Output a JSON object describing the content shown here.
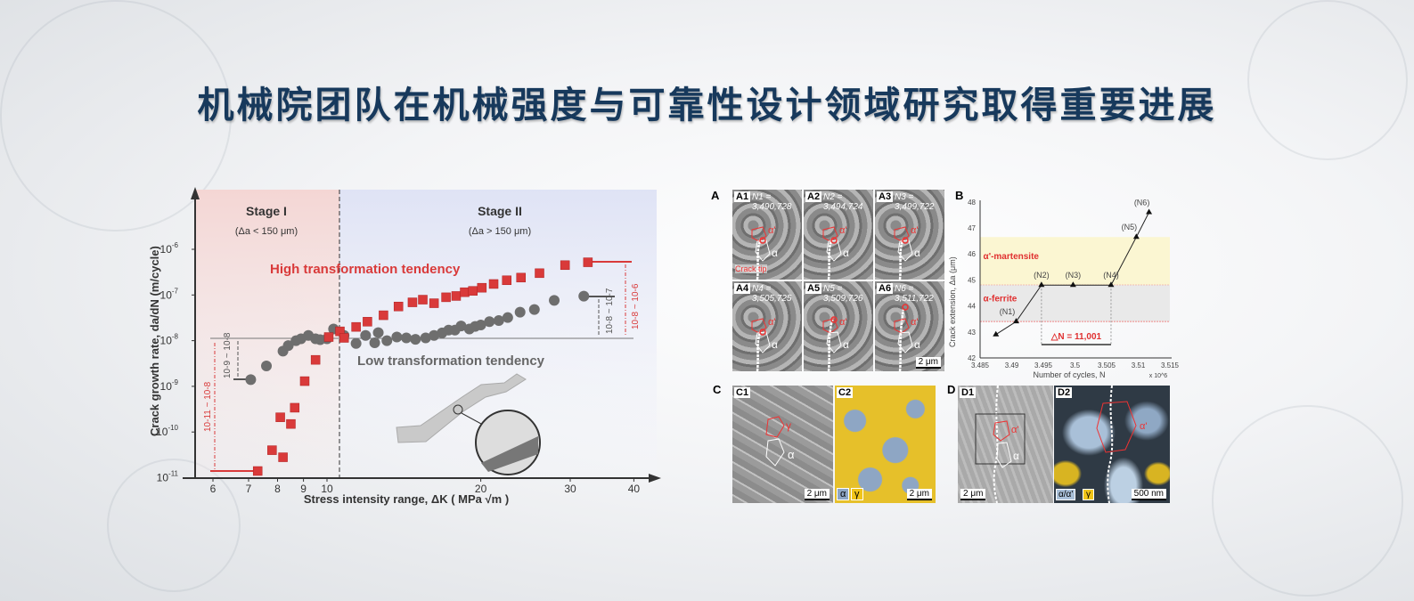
{
  "title": "机械院团队在机械强度与可靠性设计领域研究取得重要进展",
  "chart_data": [
    {
      "type": "scatter",
      "xlabel": "Stress intensity range, ΔK ( MPa √m )",
      "ylabel": "Crack growth rate, da/dN (m/cycle)",
      "x_scale": "log",
      "y_scale": "log",
      "xlim": [
        5.8,
        40
      ],
      "ylim": [
        1e-11,
        1e-06
      ],
      "x_ticks": [
        "6",
        "7",
        "8",
        "9",
        "10",
        "20",
        "30",
        "40"
      ],
      "y_ticks": [
        "10-11",
        "10-10",
        "10-9",
        "10-8",
        "10-7",
        "10-6"
      ],
      "regions": [
        {
          "label": "Stage I",
          "sub": "(Δa < 150 μm)"
        },
        {
          "label": "Stage II",
          "sub": "(Δa > 150 μm)"
        }
      ],
      "series": [
        {
          "name": "High transformation tendency",
          "color": "#d93a3a",
          "marker": "square",
          "x": [
            7.3,
            7.8,
            8.2,
            8.1,
            8.5,
            8.65,
            9.05,
            9.5,
            10.08,
            10.6,
            10.8,
            11.4,
            12.0,
            12.9,
            13.8,
            14.7,
            15.4,
            16.2,
            17.1,
            17.9,
            18.6,
            19.3,
            20.1,
            21.2,
            22.5,
            24.0,
            26.1,
            29.3,
            32.5
          ],
          "y": [
            1.4e-11,
            4e-11,
            2.8e-11,
            2.1e-10,
            1.5e-10,
            3.4e-10,
            1.3e-09,
            3.8e-09,
            1.2e-08,
            1.6e-08,
            1.15e-08,
            2e-08,
            2.6e-08,
            3.6e-08,
            5.6e-08,
            6.9e-08,
            7.9e-08,
            6.6e-08,
            8.9e-08,
            9.5e-08,
            1.15e-07,
            1.23e-07,
            1.44e-07,
            1.74e-07,
            2.1e-07,
            2.4e-07,
            3e-07,
            4.5e-07,
            5.2e-07
          ]
        },
        {
          "name": "Low transformation tendency",
          "color": "#6e6e6e",
          "marker": "circle",
          "x": [
            7.07,
            7.6,
            8.2,
            8.4,
            8.7,
            8.9,
            9.2,
            9.5,
            9.7,
            10.0,
            10.3,
            10.8,
            11.4,
            11.9,
            12.4,
            12.6,
            13.1,
            13.7,
            14.3,
            14.9,
            15.6,
            16.2,
            16.8,
            17.3,
            17.8,
            18.3,
            19.0,
            19.5,
            20.0,
            20.8,
            21.7,
            22.6,
            23.9,
            25.5,
            27.9,
            31.9
          ],
          "y": [
            1.4e-09,
            2.8e-09,
            5.9e-09,
            7.8e-09,
            1e-08,
            1.1e-08,
            1.3e-08,
            1.1e-08,
            1.05e-08,
            1.1e-08,
            1.8e-08,
            1.3e-08,
            8.7e-09,
            1.3e-08,
            9e-09,
            1.5e-08,
            1e-08,
            1.2e-08,
            1.15e-08,
            1.07e-08,
            1.15e-08,
            1.3e-08,
            1.48e-08,
            1.7e-08,
            1.7e-08,
            2.1e-08,
            1.8e-08,
            2.05e-08,
            2.2e-08,
            2.6e-08,
            2.75e-08,
            3.2e-08,
            4.2e-08,
            4.8e-08,
            7.6e-08,
            9.4e-08
          ]
        }
      ],
      "annotations": [
        "10-11 ~ 10-8",
        "10-9 ~ 10-8",
        "10-8 ~ 10-7",
        "10-8 ~ 10-6"
      ]
    },
    {
      "type": "line",
      "panel": "B",
      "xlabel": "Number of cycles, N",
      "x_multiplier": "x 10^6",
      "ylabel": "Crack extension, Δa (μm)",
      "xlim": [
        3.485,
        3.515
      ],
      "ylim": [
        42,
        48
      ],
      "x_ticks": [
        "3.485",
        "3.49",
        "3.495",
        "3.5",
        "3.505",
        "3.51",
        "3.515"
      ],
      "y_ticks": [
        "42",
        "43",
        "44",
        "45",
        "46",
        "47",
        "48"
      ],
      "x": [
        3.4875,
        3.4907,
        3.4947,
        3.4997,
        3.5057,
        3.5097,
        3.5117
      ],
      "y": [
        42.9,
        43.4,
        44.8,
        44.8,
        44.8,
        46.65,
        47.6
      ],
      "point_labels": [
        "",
        "(N1)",
        "(N2)",
        "(N3)",
        "(N4)",
        "(N5)",
        "(N6)"
      ],
      "bands": [
        {
          "label": "α'-martensite",
          "from": 44.8,
          "to": 46.65,
          "color": "#fbf6d2"
        },
        {
          "label": "α-ferrite",
          "from": 43.4,
          "to": 44.8,
          "color": "#e9e9e9"
        }
      ],
      "annotation": "△N = 11,001"
    }
  ],
  "panelA": {
    "letter": "A",
    "tiles": [
      {
        "label": "A1",
        "n": "N1 = 3,490,728"
      },
      {
        "label": "A2",
        "n": "N2 = 3,494,724"
      },
      {
        "label": "A3",
        "n": "N3 = 3,499,722"
      },
      {
        "label": "A4",
        "n": "N4 = 3,505,725"
      },
      {
        "label": "A5",
        "n": "N5 = 3,509,726"
      },
      {
        "label": "A6",
        "n": "N6 = 3,511,722"
      }
    ],
    "crack_tip": "Crack tip",
    "alpha": "α",
    "alpha_prime": "α'",
    "scale": "2 μm"
  },
  "panelB": {
    "letter": "B"
  },
  "panelC": {
    "letter": "C",
    "c1": "C1",
    "c2": "C2",
    "gamma": "γ",
    "alpha": "α",
    "scale": "2 μm",
    "legend_a": "α",
    "legend_g": "γ"
  },
  "panelD": {
    "letter": "D",
    "d1": "D1",
    "d2": "D2",
    "alpha_prime": "α'",
    "alpha": "α",
    "scale1": "2 μm",
    "scale2": "500 nm",
    "legend_a": "α/α'",
    "legend_g": "γ"
  }
}
